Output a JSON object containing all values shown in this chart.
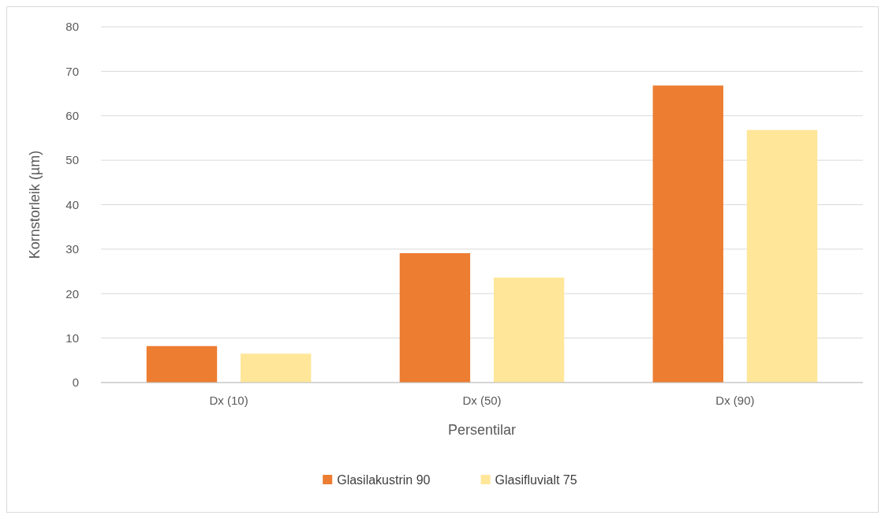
{
  "chart_data": {
    "type": "bar",
    "xlabel": "Persentilar",
    "ylabel": "Kornstorleik (µm)",
    "categories": [
      "Dx (10)",
      "Dx (50)",
      "Dx (90)"
    ],
    "series": [
      {
        "name": "Glasilakustrin 90",
        "color": "#ed7d31",
        "values": [
          8.2,
          29.1,
          66.8
        ]
      },
      {
        "name": "Glasifluvialt 75",
        "color": "#ffe699",
        "values": [
          6.5,
          23.6,
          56.8
        ]
      }
    ],
    "ylim": [
      0,
      80
    ],
    "yticks": [
      0,
      10,
      20,
      30,
      40,
      50,
      60,
      70,
      80
    ],
    "grid": "y",
    "legend": "bottom"
  }
}
